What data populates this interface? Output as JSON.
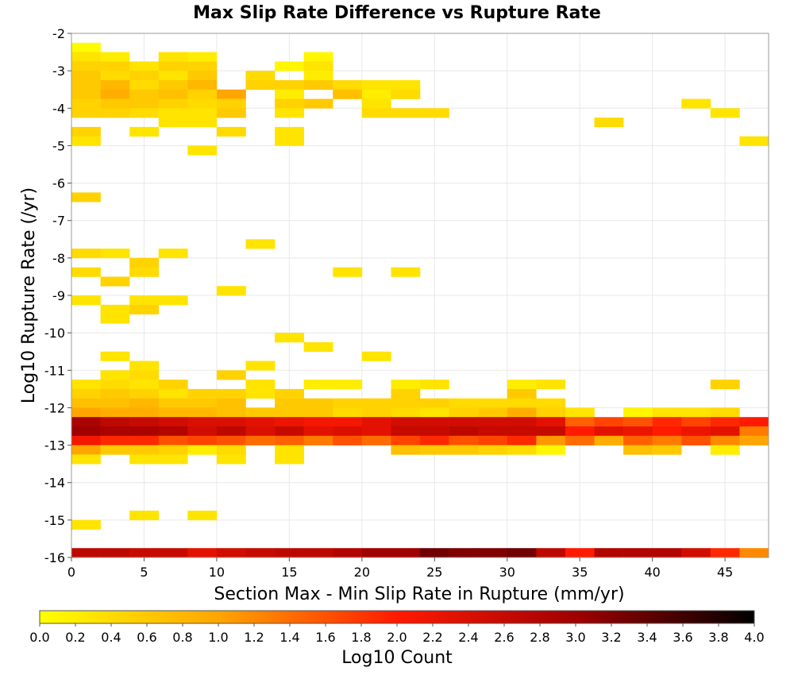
{
  "chart_data": {
    "type": "heatmap",
    "title": "Max Slip Rate Difference vs Rupture Rate",
    "xlabel": "Section Max - Min Slip Rate in Rupture (mm/yr)",
    "ylabel": "Log10 Rupture Rate (/yr)",
    "colorbar_label": "Log10 Count",
    "xlim": [
      0,
      48
    ],
    "ylim": [
      -16,
      -2
    ],
    "x_ticks": [
      0,
      5,
      10,
      15,
      20,
      25,
      30,
      35,
      40,
      45
    ],
    "y_ticks": [
      -2,
      -3,
      -4,
      -5,
      -6,
      -7,
      -8,
      -9,
      -10,
      -11,
      -12,
      -13,
      -14,
      -15,
      -16
    ],
    "colorbar_ticks": [
      "0.0",
      "0.2",
      "0.4",
      "0.6",
      "0.8",
      "1.0",
      "1.2",
      "1.4",
      "1.6",
      "1.8",
      "2.0",
      "2.2",
      "2.4",
      "2.6",
      "2.8",
      "3.0",
      "3.2",
      "3.4",
      "3.6",
      "3.8",
      "4.0"
    ],
    "colorscale": {
      "min": 0,
      "max": 4,
      "stops": [
        "#ffff00",
        "#ffa500",
        "#ff1a00",
        "#a00000",
        "#000000"
      ]
    },
    "grid": true,
    "bin_width_x": 2,
    "bin_height_y": 0.25,
    "cells": [
      [
        0,
        -2.25,
        0.05
      ],
      [
        0,
        -2.5,
        0.3
      ],
      [
        2,
        -2.5,
        0.2
      ],
      [
        6,
        -2.5,
        0.3
      ],
      [
        8,
        -2.5,
        0.2
      ],
      [
        16,
        -2.5,
        0.1
      ],
      [
        0,
        -2.75,
        0.5
      ],
      [
        2,
        -2.75,
        0.5
      ],
      [
        4,
        -2.75,
        0.3
      ],
      [
        6,
        -2.75,
        0.5
      ],
      [
        8,
        -2.75,
        0.5
      ],
      [
        14,
        -2.75,
        0.1
      ],
      [
        16,
        -2.75,
        0.3
      ],
      [
        0,
        -3.0,
        0.6
      ],
      [
        2,
        -3.0,
        0.4
      ],
      [
        4,
        -3.0,
        0.5
      ],
      [
        6,
        -3.0,
        0.3
      ],
      [
        8,
        -3.0,
        0.6
      ],
      [
        12,
        -3.0,
        0.4
      ],
      [
        16,
        -3.0,
        0.2
      ],
      [
        0,
        -3.25,
        0.6
      ],
      [
        2,
        -3.25,
        0.8
      ],
      [
        4,
        -3.25,
        0.4
      ],
      [
        6,
        -3.25,
        0.6
      ],
      [
        8,
        -3.25,
        0.8
      ],
      [
        12,
        -3.25,
        0.5
      ],
      [
        14,
        -3.25,
        0.5
      ],
      [
        16,
        -3.25,
        0.6
      ],
      [
        18,
        -3.25,
        0.4
      ],
      [
        20,
        -3.25,
        0.3
      ],
      [
        22,
        -3.25,
        0.3
      ],
      [
        0,
        -3.5,
        0.6
      ],
      [
        2,
        -3.5,
        0.9
      ],
      [
        4,
        -3.5,
        0.6
      ],
      [
        6,
        -3.5,
        0.7
      ],
      [
        8,
        -3.5,
        0.5
      ],
      [
        10,
        -3.5,
        1.0
      ],
      [
        14,
        -3.5,
        0.2
      ],
      [
        18,
        -3.5,
        0.7
      ],
      [
        20,
        -3.5,
        0.2
      ],
      [
        22,
        -3.5,
        0.4
      ],
      [
        0,
        -3.75,
        0.5
      ],
      [
        2,
        -3.75,
        0.6
      ],
      [
        4,
        -3.75,
        0.6
      ],
      [
        6,
        -3.75,
        0.5
      ],
      [
        8,
        -3.75,
        0.4
      ],
      [
        10,
        -3.75,
        0.5
      ],
      [
        14,
        -3.75,
        0.5
      ],
      [
        16,
        -3.75,
        0.6
      ],
      [
        20,
        -3.75,
        0.3
      ],
      [
        42,
        -3.75,
        0.3
      ],
      [
        0,
        -4.0,
        0.5
      ],
      [
        2,
        -4.0,
        0.5
      ],
      [
        4,
        -4.0,
        0.4
      ],
      [
        6,
        -4.0,
        0.3
      ],
      [
        8,
        -4.0,
        0.3
      ],
      [
        10,
        -4.0,
        0.6
      ],
      [
        14,
        -4.0,
        0.3
      ],
      [
        20,
        -4.0,
        0.4
      ],
      [
        22,
        -4.0,
        0.4
      ],
      [
        24,
        -4.0,
        0.4
      ],
      [
        44,
        -4.0,
        0.3
      ],
      [
        6,
        -4.25,
        0.3
      ],
      [
        8,
        -4.25,
        0.3
      ],
      [
        36,
        -4.25,
        0.4
      ],
      [
        0,
        -4.5,
        0.5
      ],
      [
        4,
        -4.5,
        0.3
      ],
      [
        10,
        -4.5,
        0.4
      ],
      [
        14,
        -4.5,
        0.3
      ],
      [
        0,
        -4.75,
        0.3
      ],
      [
        14,
        -4.75,
        0.3
      ],
      [
        46,
        -4.75,
        0.3
      ],
      [
        8,
        -5.0,
        0.3
      ],
      [
        0,
        -6.25,
        0.5
      ],
      [
        12,
        -7.5,
        0.3
      ],
      [
        0,
        -7.75,
        0.4
      ],
      [
        2,
        -7.75,
        0.3
      ],
      [
        6,
        -7.75,
        0.3
      ],
      [
        4,
        -8.0,
        0.5
      ],
      [
        0,
        -8.25,
        0.4
      ],
      [
        4,
        -8.25,
        0.4
      ],
      [
        18,
        -8.25,
        0.3
      ],
      [
        22,
        -8.25,
        0.3
      ],
      [
        2,
        -8.5,
        0.5
      ],
      [
        10,
        -8.75,
        0.3
      ],
      [
        0,
        -9.0,
        0.3
      ],
      [
        4,
        -9.0,
        0.3
      ],
      [
        6,
        -9.0,
        0.3
      ],
      [
        2,
        -9.25,
        0.3
      ],
      [
        4,
        -9.25,
        0.5
      ],
      [
        2,
        -9.5,
        0.3
      ],
      [
        14,
        -10.0,
        0.3
      ],
      [
        16,
        -10.25,
        0.3
      ],
      [
        2,
        -10.5,
        0.3
      ],
      [
        20,
        -10.5,
        0.3
      ],
      [
        4,
        -10.75,
        0.3
      ],
      [
        12,
        -10.75,
        0.3
      ],
      [
        2,
        -11.0,
        0.3
      ],
      [
        4,
        -11.0,
        0.4
      ],
      [
        10,
        -11.0,
        0.5
      ],
      [
        0,
        -11.25,
        0.3
      ],
      [
        2,
        -11.25,
        0.4
      ],
      [
        4,
        -11.25,
        0.3
      ],
      [
        6,
        -11.25,
        0.5
      ],
      [
        12,
        -11.25,
        0.3
      ],
      [
        16,
        -11.25,
        0.2
      ],
      [
        18,
        -11.25,
        0.2
      ],
      [
        22,
        -11.25,
        0.2
      ],
      [
        24,
        -11.25,
        0.3
      ],
      [
        30,
        -11.25,
        0.2
      ],
      [
        32,
        -11.25,
        0.3
      ],
      [
        44,
        -11.25,
        0.5
      ],
      [
        0,
        -11.5,
        0.5
      ],
      [
        2,
        -11.5,
        0.6
      ],
      [
        4,
        -11.5,
        0.5
      ],
      [
        6,
        -11.5,
        0.3
      ],
      [
        8,
        -11.5,
        0.5
      ],
      [
        10,
        -11.5,
        0.5
      ],
      [
        12,
        -11.5,
        0.3
      ],
      [
        14,
        -11.5,
        0.5
      ],
      [
        22,
        -11.5,
        0.5
      ],
      [
        30,
        -11.5,
        0.6
      ],
      [
        0,
        -11.75,
        0.7
      ],
      [
        2,
        -11.75,
        0.7
      ],
      [
        4,
        -11.75,
        0.8
      ],
      [
        6,
        -11.75,
        0.6
      ],
      [
        8,
        -11.75,
        0.6
      ],
      [
        10,
        -11.75,
        0.7
      ],
      [
        14,
        -11.75,
        0.6
      ],
      [
        16,
        -11.75,
        0.6
      ],
      [
        18,
        -11.75,
        0.5
      ],
      [
        20,
        -11.75,
        0.5
      ],
      [
        22,
        -11.75,
        0.5
      ],
      [
        24,
        -11.75,
        0.5
      ],
      [
        26,
        -11.75,
        0.4
      ],
      [
        28,
        -11.75,
        0.4
      ],
      [
        30,
        -11.75,
        0.4
      ],
      [
        32,
        -11.75,
        0.4
      ],
      [
        0,
        -12.0,
        1.0
      ],
      [
        2,
        -12.0,
        0.9
      ],
      [
        4,
        -12.0,
        0.9
      ],
      [
        6,
        -12.0,
        0.8
      ],
      [
        8,
        -12.0,
        0.8
      ],
      [
        10,
        -12.0,
        0.7
      ],
      [
        12,
        -12.0,
        0.6
      ],
      [
        14,
        -12.0,
        0.6
      ],
      [
        16,
        -12.0,
        0.6
      ],
      [
        18,
        -12.0,
        0.4
      ],
      [
        20,
        -12.0,
        0.5
      ],
      [
        22,
        -12.0,
        0.4
      ],
      [
        24,
        -12.0,
        0.3
      ],
      [
        26,
        -12.0,
        0.5
      ],
      [
        28,
        -12.0,
        0.6
      ],
      [
        30,
        -12.0,
        0.9
      ],
      [
        32,
        -12.0,
        0.5
      ],
      [
        34,
        -12.0,
        0.3
      ],
      [
        38,
        -12.0,
        0.1
      ],
      [
        40,
        -12.0,
        0.3
      ],
      [
        42,
        -12.0,
        0.3
      ],
      [
        44,
        -12.0,
        0.4
      ],
      [
        0,
        -12.25,
        2.9
      ],
      [
        2,
        -12.25,
        2.7
      ],
      [
        4,
        -12.25,
        2.6
      ],
      [
        6,
        -12.25,
        2.5
      ],
      [
        8,
        -12.25,
        2.4
      ],
      [
        10,
        -12.25,
        2.4
      ],
      [
        12,
        -12.25,
        2.3
      ],
      [
        14,
        -12.25,
        2.2
      ],
      [
        16,
        -12.25,
        2.1
      ],
      [
        18,
        -12.25,
        2.1
      ],
      [
        20,
        -12.25,
        2.3
      ],
      [
        22,
        -12.25,
        2.5
      ],
      [
        24,
        -12.25,
        2.5
      ],
      [
        26,
        -12.25,
        2.5
      ],
      [
        28,
        -12.25,
        2.5
      ],
      [
        30,
        -12.25,
        2.5
      ],
      [
        32,
        -12.25,
        2.3
      ],
      [
        34,
        -12.25,
        1.5
      ],
      [
        36,
        -12.25,
        1.7
      ],
      [
        38,
        -12.25,
        1.6
      ],
      [
        40,
        -12.25,
        1.9
      ],
      [
        42,
        -12.25,
        1.7
      ],
      [
        44,
        -12.25,
        1.9
      ],
      [
        46,
        -12.25,
        2.0
      ],
      [
        0,
        -12.5,
        3.0
      ],
      [
        2,
        -12.5,
        2.9
      ],
      [
        4,
        -12.5,
        2.9
      ],
      [
        6,
        -12.5,
        2.8
      ],
      [
        8,
        -12.5,
        2.5
      ],
      [
        10,
        -12.5,
        2.7
      ],
      [
        12,
        -12.5,
        2.4
      ],
      [
        14,
        -12.5,
        2.6
      ],
      [
        16,
        -12.5,
        2.3
      ],
      [
        18,
        -12.5,
        2.4
      ],
      [
        20,
        -12.5,
        2.3
      ],
      [
        22,
        -12.5,
        2.6
      ],
      [
        24,
        -12.5,
        2.6
      ],
      [
        26,
        -12.5,
        2.7
      ],
      [
        28,
        -12.5,
        2.6
      ],
      [
        30,
        -12.5,
        2.6
      ],
      [
        32,
        -12.5,
        2.6
      ],
      [
        34,
        -12.5,
        2.0
      ],
      [
        36,
        -12.5,
        2.3
      ],
      [
        38,
        -12.5,
        2.2
      ],
      [
        40,
        -12.5,
        2.0
      ],
      [
        42,
        -12.5,
        2.2
      ],
      [
        44,
        -12.5,
        2.3
      ],
      [
        46,
        -12.5,
        1.3
      ],
      [
        0,
        -12.75,
        2.1
      ],
      [
        2,
        -12.75,
        1.9
      ],
      [
        4,
        -12.75,
        1.9
      ],
      [
        6,
        -12.75,
        1.6
      ],
      [
        8,
        -12.75,
        1.7
      ],
      [
        10,
        -12.75,
        1.6
      ],
      [
        12,
        -12.75,
        1.4
      ],
      [
        14,
        -12.75,
        1.5
      ],
      [
        16,
        -12.75,
        1.3
      ],
      [
        18,
        -12.75,
        1.6
      ],
      [
        20,
        -12.75,
        1.4
      ],
      [
        22,
        -12.75,
        1.7
      ],
      [
        24,
        -12.75,
        1.9
      ],
      [
        26,
        -12.75,
        1.6
      ],
      [
        28,
        -12.75,
        1.7
      ],
      [
        30,
        -12.75,
        1.9
      ],
      [
        32,
        -12.75,
        1.1
      ],
      [
        34,
        -12.75,
        1.4
      ],
      [
        36,
        -12.75,
        0.9
      ],
      [
        38,
        -12.75,
        1.5
      ],
      [
        40,
        -12.75,
        1.3
      ],
      [
        42,
        -12.75,
        1.6
      ],
      [
        44,
        -12.75,
        1.2
      ],
      [
        46,
        -12.75,
        1.0
      ],
      [
        0,
        -13.0,
        1.0
      ],
      [
        2,
        -13.0,
        0.6
      ],
      [
        4,
        -13.0,
        0.6
      ],
      [
        6,
        -13.0,
        0.5
      ],
      [
        8,
        -13.0,
        0.2
      ],
      [
        10,
        -13.0,
        0.4
      ],
      [
        14,
        -13.0,
        0.3
      ],
      [
        22,
        -13.0,
        0.7
      ],
      [
        24,
        -13.0,
        0.6
      ],
      [
        26,
        -13.0,
        0.6
      ],
      [
        28,
        -13.0,
        0.5
      ],
      [
        30,
        -13.0,
        0.4
      ],
      [
        32,
        -13.0,
        0.1
      ],
      [
        38,
        -13.0,
        0.7
      ],
      [
        40,
        -13.0,
        0.6
      ],
      [
        44,
        -13.0,
        0.2
      ],
      [
        0,
        -13.25,
        0.3
      ],
      [
        4,
        -13.25,
        0.3
      ],
      [
        6,
        -13.25,
        0.3
      ],
      [
        10,
        -13.25,
        0.3
      ],
      [
        14,
        -13.25,
        0.3
      ],
      [
        4,
        -14.75,
        0.3
      ],
      [
        8,
        -14.75,
        0.3
      ],
      [
        0,
        -15.0,
        0.3
      ],
      [
        0,
        -15.75,
        2.7
      ],
      [
        2,
        -15.75,
        2.7
      ],
      [
        4,
        -15.75,
        2.6
      ],
      [
        6,
        -15.75,
        2.6
      ],
      [
        8,
        -15.75,
        2.3
      ],
      [
        10,
        -15.75,
        2.5
      ],
      [
        12,
        -15.75,
        2.6
      ],
      [
        14,
        -15.75,
        2.7
      ],
      [
        16,
        -15.75,
        2.7
      ],
      [
        18,
        -15.75,
        2.8
      ],
      [
        20,
        -15.75,
        3.0
      ],
      [
        22,
        -15.75,
        3.0
      ],
      [
        24,
        -15.75,
        3.3
      ],
      [
        26,
        -15.75,
        3.2
      ],
      [
        28,
        -15.75,
        3.2
      ],
      [
        30,
        -15.75,
        3.3
      ],
      [
        32,
        -15.75,
        2.7
      ],
      [
        34,
        -15.75,
        2.0
      ],
      [
        36,
        -15.75,
        2.8
      ],
      [
        38,
        -15.75,
        2.8
      ],
      [
        40,
        -15.75,
        2.8
      ],
      [
        42,
        -15.75,
        2.5
      ],
      [
        44,
        -15.75,
        1.9
      ],
      [
        46,
        -15.75,
        1.2
      ]
    ]
  }
}
